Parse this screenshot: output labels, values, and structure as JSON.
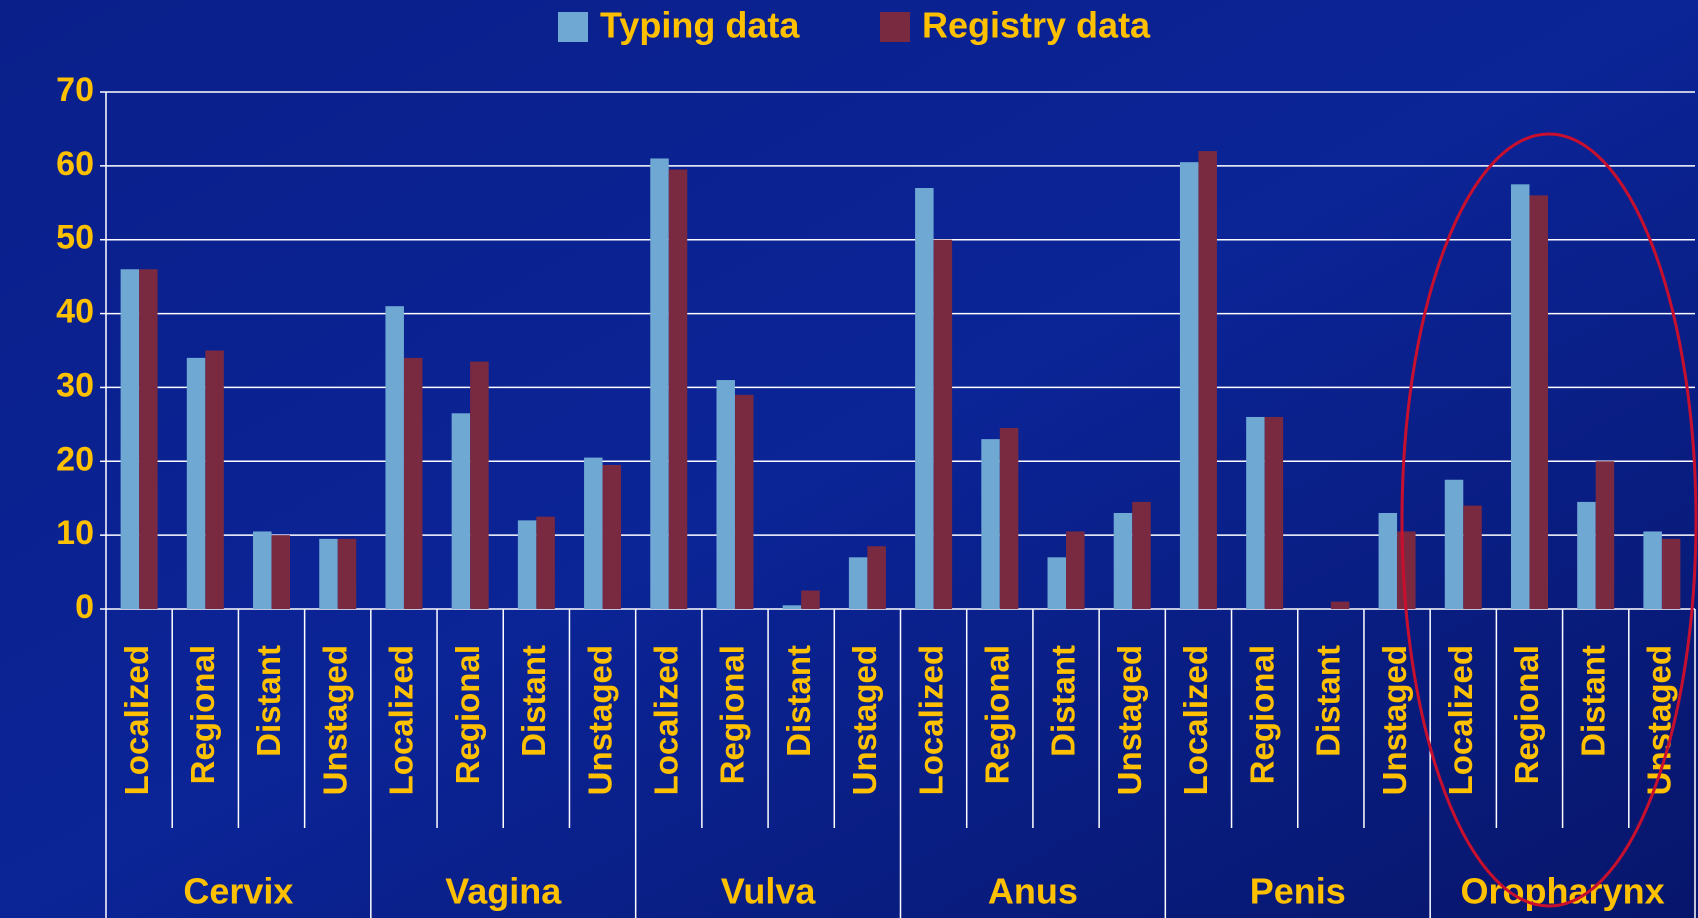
{
  "chart_data": {
    "type": "bar",
    "categories": [
      "Localized",
      "Regional",
      "Distant",
      "Unstaged",
      "Localized",
      "Regional",
      "Distant",
      "Unstaged",
      "Localized",
      "Regional",
      "Distant",
      "Unstaged",
      "Localized",
      "Regional",
      "Distant",
      "Unstaged",
      "Localized",
      "Regional",
      "Distant",
      "Unstaged",
      "Localized",
      "Regional",
      "Distant",
      "Unstaged"
    ],
    "groups": [
      "Cervix",
      "Vagina",
      "Vulva",
      "Anus",
      "Penis",
      "Oropharynx"
    ],
    "series": [
      {
        "name": "Typing data",
        "color": "#6fa8d2",
        "values": [
          46,
          34,
          10.5,
          9.5,
          41,
          26.5,
          12,
          20.5,
          61,
          31,
          0.5,
          7,
          57,
          23,
          7,
          13,
          60.5,
          26,
          0,
          13,
          17.5,
          57.5,
          14.5,
          10.5
        ]
      },
      {
        "name": "Registry data",
        "color": "#7a2a40",
        "values": [
          46,
          35,
          10,
          9.5,
          34,
          33.5,
          12.5,
          19.5,
          59.5,
          29,
          2.5,
          8.5,
          50,
          24.5,
          10.5,
          14.5,
          62,
          26,
          1,
          10.5,
          14,
          56,
          20,
          9.5
        ]
      }
    ],
    "ylim": [
      0,
      70
    ],
    "yticks": [
      0,
      10,
      20,
      30,
      40,
      50,
      60,
      70
    ],
    "grid": true,
    "legend": "top"
  }
}
